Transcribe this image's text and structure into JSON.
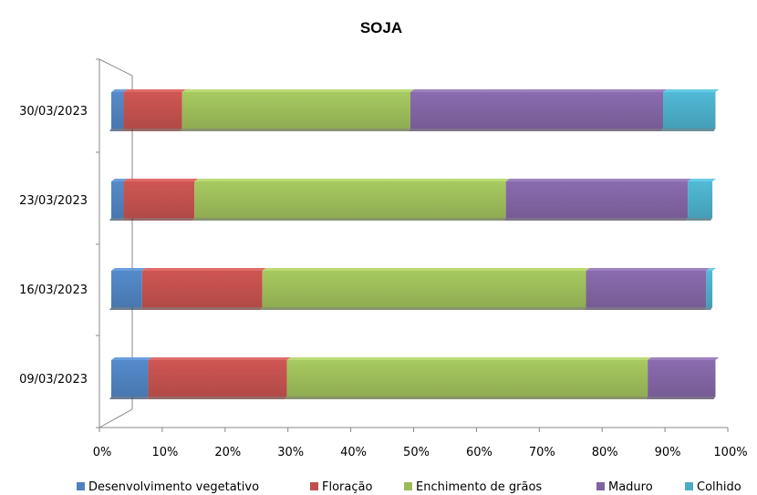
{
  "chart_data": {
    "type": "bar",
    "orientation": "horizontal",
    "stacked": "percent",
    "title": "SOJA",
    "categories": [
      "09/03/2023",
      "16/03/2023",
      "23/03/2023",
      "30/03/2023"
    ],
    "xlim": [
      0,
      100
    ],
    "x_ticks": [
      "0%",
      "10%",
      "20%",
      "30%",
      "40%",
      "50%",
      "60%",
      "70%",
      "80%",
      "90%",
      "100%"
    ],
    "series": [
      {
        "name": "Desenvolvimento vegetativo",
        "color": "#4f81bd",
        "values": [
          6,
          5,
          2,
          2
        ]
      },
      {
        "name": "Floração",
        "color": "#c0504d",
        "values": [
          22.5,
          19.5,
          11.5,
          9.5
        ]
      },
      {
        "name": "Enchimento de grãos",
        "color": "#9bbb59",
        "values": [
          58.5,
          52.5,
          50.5,
          37
        ]
      },
      {
        "name": "Maduro",
        "color": "#8064a2",
        "values": [
          11,
          19.5,
          29.5,
          41
        ]
      },
      {
        "name": "Colhido",
        "color": "#4bacc6",
        "values": [
          0,
          1,
          4,
          8.5
        ]
      }
    ],
    "legend_position": "bottom",
    "grid": false
  }
}
